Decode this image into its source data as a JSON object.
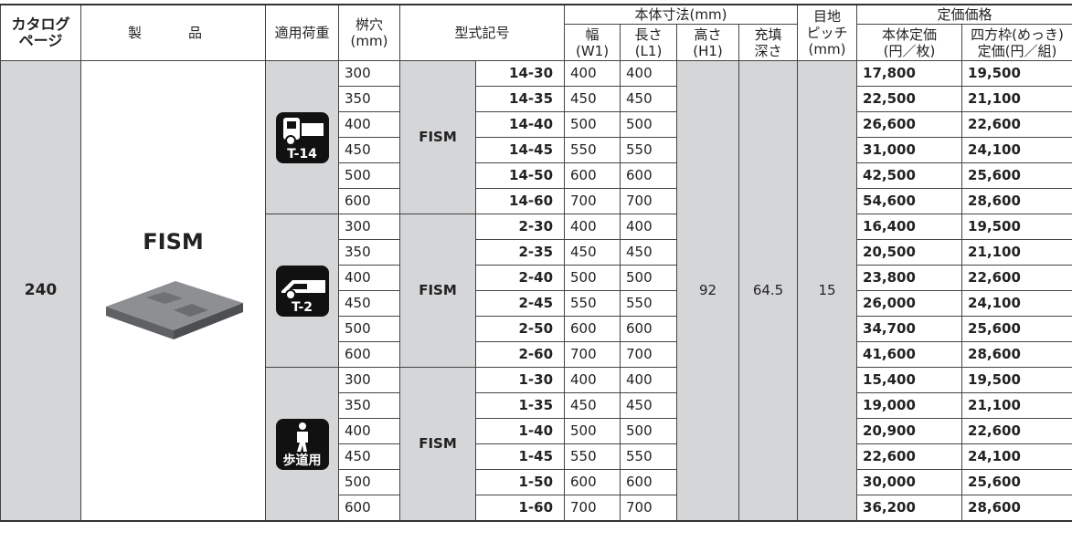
{
  "header": {
    "catalog_page": [
      "カタログ",
      "ページ"
    ],
    "product": "製　品",
    "load": "適用荷重",
    "hole": [
      "桝穴",
      "(mm)"
    ],
    "model": "型式記号",
    "body_size": "本体寸法(mm)",
    "width": [
      "幅",
      "(W1)"
    ],
    "length": [
      "長さ",
      "(L1)"
    ],
    "height": [
      "高さ",
      "(H1)"
    ],
    "fill_depth": [
      "充填",
      "深さ"
    ],
    "joint_pitch": [
      "目地",
      "ピッチ",
      "(mm)"
    ],
    "list_price": "定価価格",
    "body_price": [
      "本体定価",
      "(円／枚)"
    ],
    "frame_price": [
      "四方枠(めっき)",
      "定価(円／組)"
    ]
  },
  "table": {
    "catalog_page": "240",
    "product": "FISM",
    "height": "92",
    "fill_depth": "64.5",
    "joint_pitch": "15",
    "groups": [
      {
        "load": "T-14",
        "series": "FISM",
        "rows": [
          [
            "300",
            "14-30",
            "400",
            "400",
            "17,800",
            "19,500"
          ],
          [
            "350",
            "14-35",
            "450",
            "450",
            "22,500",
            "21,100"
          ],
          [
            "400",
            "14-40",
            "500",
            "500",
            "26,600",
            "22,600"
          ],
          [
            "450",
            "14-45",
            "550",
            "550",
            "31,000",
            "24,100"
          ],
          [
            "500",
            "14-50",
            "600",
            "600",
            "42,500",
            "25,600"
          ],
          [
            "600",
            "14-60",
            "700",
            "700",
            "54,600",
            "28,600"
          ]
        ]
      },
      {
        "load": "T-2",
        "series": "FISM",
        "rows": [
          [
            "300",
            "2-30",
            "400",
            "400",
            "16,400",
            "19,500"
          ],
          [
            "350",
            "2-35",
            "450",
            "450",
            "20,500",
            "21,100"
          ],
          [
            "400",
            "2-40",
            "500",
            "500",
            "23,800",
            "22,600"
          ],
          [
            "450",
            "2-45",
            "550",
            "550",
            "26,000",
            "24,100"
          ],
          [
            "500",
            "2-50",
            "600",
            "600",
            "34,700",
            "25,600"
          ],
          [
            "600",
            "2-60",
            "700",
            "700",
            "41,600",
            "28,600"
          ]
        ]
      },
      {
        "load": "歩道用",
        "series": "FISM",
        "rows": [
          [
            "300",
            "1-30",
            "400",
            "400",
            "15,400",
            "19,500"
          ],
          [
            "350",
            "1-35",
            "450",
            "450",
            "19,000",
            "21,100"
          ],
          [
            "400",
            "1-40",
            "500",
            "500",
            "20,900",
            "22,600"
          ],
          [
            "450",
            "1-45",
            "550",
            "550",
            "22,600",
            "24,100"
          ],
          [
            "500",
            "1-50",
            "600",
            "600",
            "30,000",
            "25,600"
          ],
          [
            "600",
            "1-60",
            "700",
            "700",
            "36,200",
            "28,600"
          ]
        ]
      }
    ]
  }
}
